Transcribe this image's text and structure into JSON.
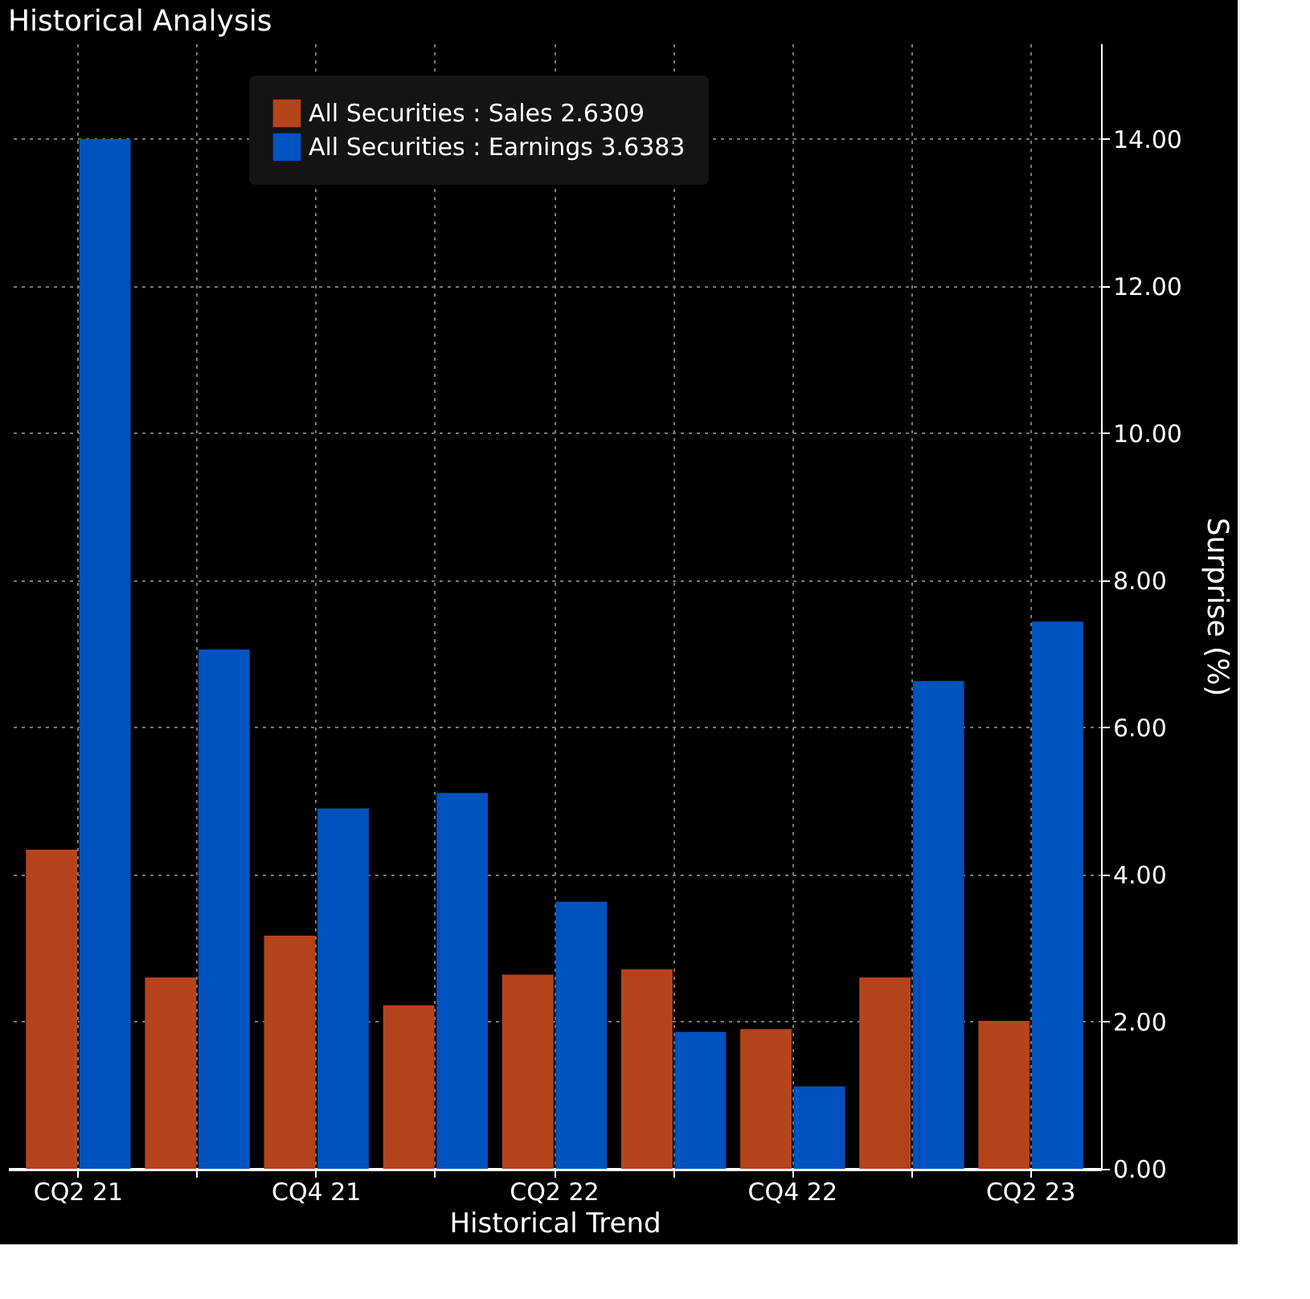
{
  "chart_data": {
    "type": "bar",
    "title": "Historical Analysis",
    "xlabel": "Historical Trend",
    "ylabel": "Surprise (%)",
    "categories": [
      "CQ2 21",
      null,
      "CQ4 21",
      null,
      "CQ2 22",
      null,
      "CQ4 22",
      null,
      "CQ2 23"
    ],
    "series": [
      {
        "name": "All Securities : Sales     2.6309",
        "color": "#b5441c",
        "values": [
          4.34,
          2.6,
          3.17,
          2.22,
          2.64,
          2.71,
          1.9,
          2.6,
          2.01
        ]
      },
      {
        "name": "All Securities : Earnings 3.6383",
        "color": "#0052be",
        "values": [
          14.0,
          7.06,
          4.9,
          5.11,
          3.63,
          1.86,
          1.12,
          6.63,
          7.44
        ]
      }
    ],
    "ylim": [
      0,
      15.3
    ],
    "yticks": [
      {
        "value": 0,
        "label": "0.00"
      },
      {
        "value": 2,
        "label": "2.00"
      },
      {
        "value": 4,
        "label": "4.00"
      },
      {
        "value": 6,
        "label": "6.00"
      },
      {
        "value": 8,
        "label": "8.00"
      },
      {
        "value": 10,
        "label": "10.00"
      },
      {
        "value": 12,
        "label": "12.00"
      },
      {
        "value": 14,
        "label": "14.00"
      }
    ],
    "grid": true,
    "legend": "top left"
  }
}
